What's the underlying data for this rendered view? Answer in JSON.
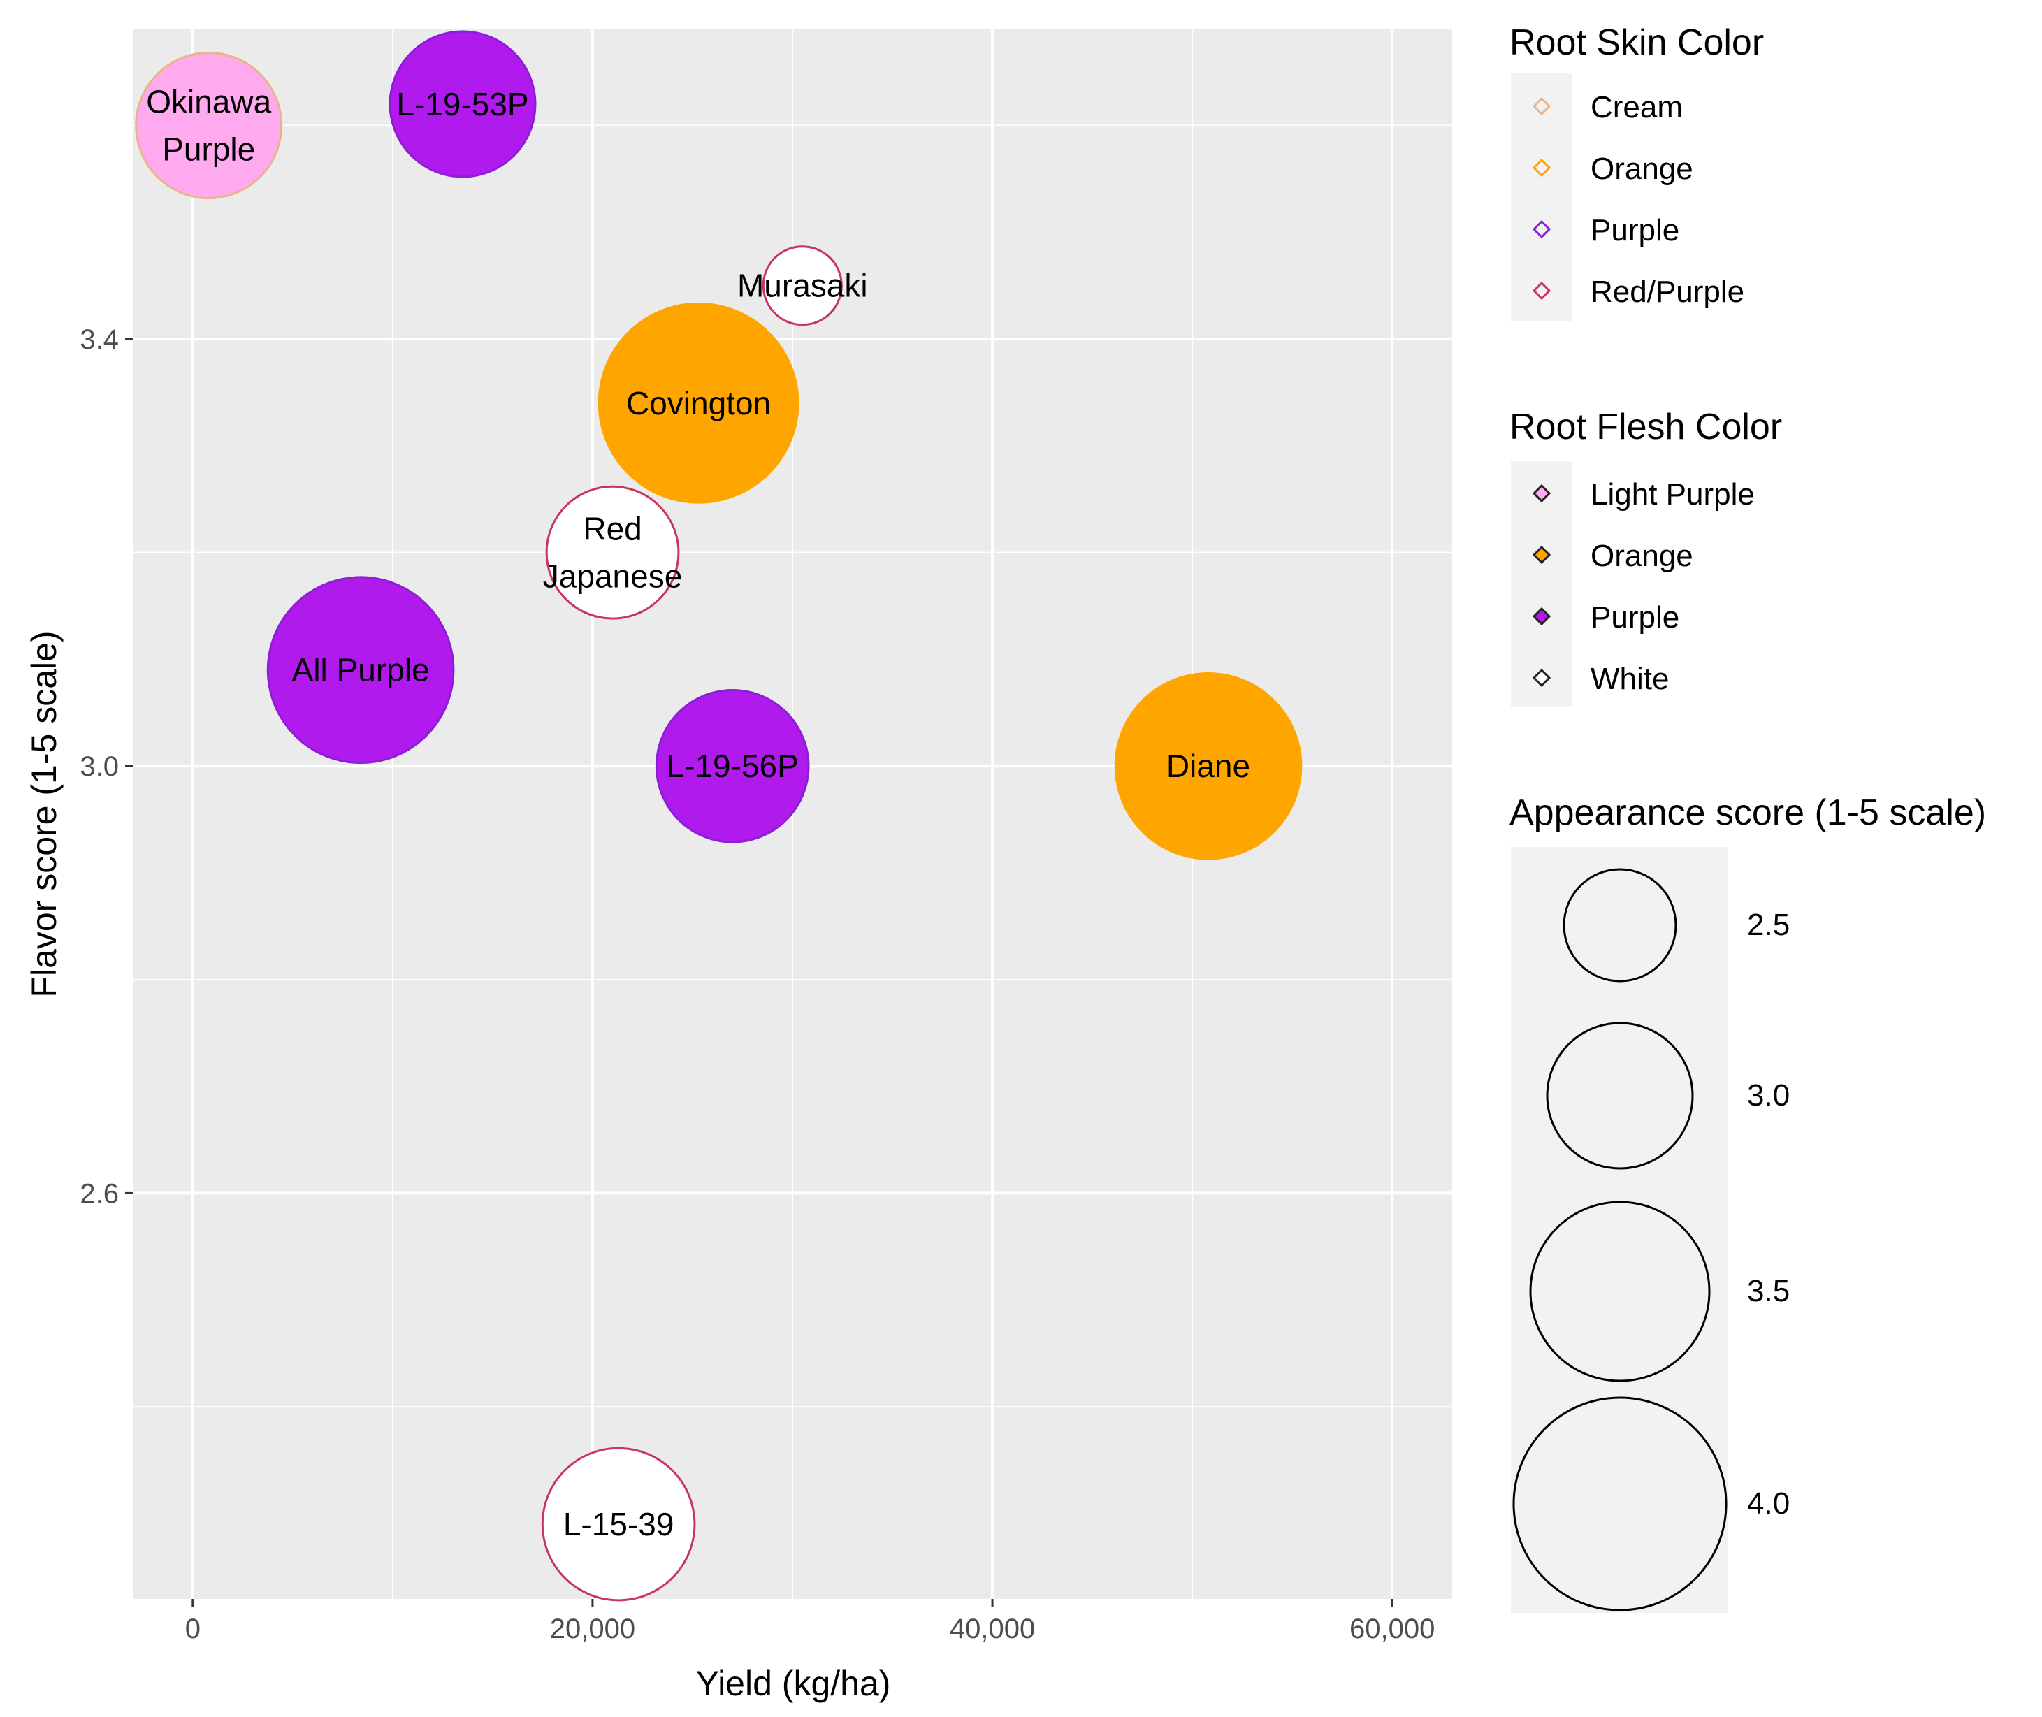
{
  "chart_data": {
    "type": "scatter",
    "xlabel": "Yield (kg/ha)",
    "ylabel": "Flavor score (1-5 scale)",
    "xlim": [
      -3000,
      63000
    ],
    "ylim": [
      2.22,
      3.69
    ],
    "x_ticks": [
      0,
      20000,
      40000,
      60000
    ],
    "x_tick_labels": [
      "0",
      "20,000",
      "40,000",
      "60,000"
    ],
    "y_ticks": [
      2.6,
      3.0,
      3.4
    ],
    "y_tick_labels": [
      "2.6",
      "3.0",
      "3.4"
    ],
    "grid": true,
    "points": [
      {
        "label": "Okinawa\nPurple",
        "x": 800,
        "y": 3.6,
        "appearance": 3.0,
        "skin": "Cream",
        "flesh": "Light Purple"
      },
      {
        "label": "L-19-53P",
        "x": 13500,
        "y": 3.62,
        "appearance": 3.0,
        "skin": "Purple",
        "flesh": "Purple"
      },
      {
        "label": "Murasaki",
        "x": 30500,
        "y": 3.45,
        "appearance": 2.0,
        "skin": "Red/Purple",
        "flesh": "White"
      },
      {
        "label": "Covington",
        "x": 25300,
        "y": 3.34,
        "appearance": 3.8,
        "skin": "Orange",
        "flesh": "Orange"
      },
      {
        "label": "Red\nJapanese",
        "x": 21000,
        "y": 3.2,
        "appearance": 2.8,
        "skin": "Red/Purple",
        "flesh": "White"
      },
      {
        "label": "All Purple",
        "x": 8400,
        "y": 3.09,
        "appearance": 3.6,
        "skin": "Purple",
        "flesh": "Purple"
      },
      {
        "label": "L-19-56P",
        "x": 27000,
        "y": 3.0,
        "appearance": 3.1,
        "skin": "Purple",
        "flesh": "Purple"
      },
      {
        "label": "Diane",
        "x": 50800,
        "y": 3.0,
        "appearance": 3.6,
        "skin": "Orange",
        "flesh": "Orange"
      },
      {
        "label": "L-15-39",
        "x": 21300,
        "y": 2.29,
        "appearance": 3.1,
        "skin": "Red/Purple",
        "flesh": "White"
      }
    ],
    "legends": {
      "skin": {
        "title": "Root Skin Color",
        "entries": [
          {
            "label": "Cream",
            "color": "#e8b48a"
          },
          {
            "label": "Orange",
            "color": "#ffa500"
          },
          {
            "label": "Purple",
            "color": "#8b1fd6"
          },
          {
            "label": "Red/Purple",
            "color": "#c8355e"
          }
        ]
      },
      "flesh": {
        "title": "Root Flesh Color",
        "entries": [
          {
            "label": "Light Purple",
            "color": "#ffaaee"
          },
          {
            "label": "Orange",
            "color": "#ffa500"
          },
          {
            "label": "Purple",
            "color": "#b01aec"
          },
          {
            "label": "White",
            "color": "#ffffff"
          }
        ]
      },
      "size": {
        "title": "Appearance score (1-5 scale)",
        "entries": [
          {
            "label": "2.5",
            "value": 2.5
          },
          {
            "label": "3.0",
            "value": 3.0
          },
          {
            "label": "3.5",
            "value": 3.5
          },
          {
            "label": "4.0",
            "value": 4.0
          }
        ]
      }
    }
  }
}
